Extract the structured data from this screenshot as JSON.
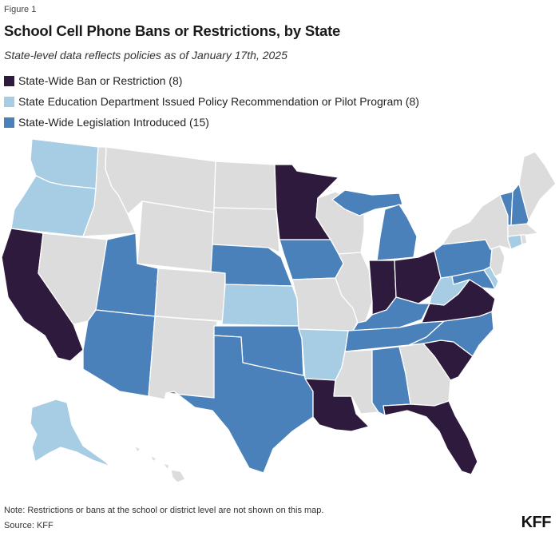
{
  "figure_label": "Figure 1",
  "title": "School Cell Phone Bans or Restrictions, by State",
  "subtitle": "State-level data reflects policies as of January 17th, 2025",
  "legend": [
    {
      "label": "State-Wide Ban or Restriction (8)",
      "color": "#2e1a3d"
    },
    {
      "label": "State Education Department Issued Policy Recommendation or Pilot Program (8)",
      "color": "#a6cde3"
    },
    {
      "label": "State-Wide Legislation Introduced (15)",
      "color": "#4a81bb"
    }
  ],
  "no_policy_color": "#dcdcdc",
  "categories": {
    "ban": [
      "California",
      "Minnesota",
      "Indiana",
      "Ohio",
      "Virginia",
      "South Carolina",
      "Louisiana",
      "Florida"
    ],
    "recommendation": [
      "Washington",
      "Oregon",
      "Alaska",
      "Kansas",
      "Arkansas",
      "West Virginia",
      "Connecticut",
      "Delaware"
    ],
    "legislation": [
      "Utah",
      "Arizona",
      "Texas",
      "Oklahoma",
      "Nebraska",
      "Iowa",
      "Michigan",
      "Kentucky",
      "Tennessee",
      "Alabama",
      "North Carolina",
      "Pennsylvania",
      "Maryland",
      "Vermont",
      "New Hampshire"
    ]
  },
  "note": "Note: Restrictions or bans at the school or district level are not shown on this map.",
  "source": "Source: KFF",
  "logo": "KFF"
}
